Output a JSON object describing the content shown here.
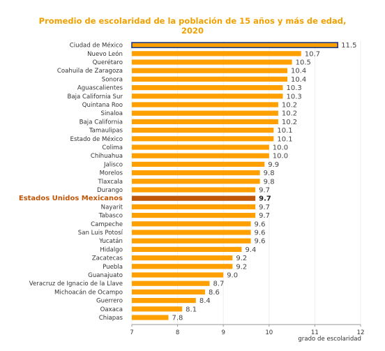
{
  "chart_data": {
    "type": "bar",
    "orientation": "horizontal",
    "title_lines": [
      "Promedio de escolaridad de la población de 15 años y más de edad,",
      "2020"
    ],
    "xlabel": "grado de escolaridad",
    "xlim": [
      7,
      12
    ],
    "xticks": [
      "7",
      "8",
      "9",
      "10",
      "11",
      "12"
    ],
    "highlight_category": "Estados Unidos Mexicanos",
    "bar_color": "#ffa000",
    "highlight_color": "#c0560a",
    "categories": [
      "Ciudad de México",
      "Nuevo León",
      "Querétaro",
      "Coahuila de Zaragoza",
      "Sonora",
      "Aguascalientes",
      "Baja California Sur",
      "Quintana Roo",
      "Sinaloa",
      "Baja California",
      "Tamaulipas",
      "Estado de México",
      "Colima",
      "Chihuahua",
      "Jalisco",
      "Morelos",
      "Tlaxcala",
      "Durango",
      "Estados Unidos Mexicanos",
      "Nayarit",
      "Tabasco",
      "Campeche",
      "San Luis Potosí",
      "Yucatán",
      "Hidalgo",
      "Zacatecas",
      "Puebla",
      "Guanajuato",
      "Veracruz de Ignacio de la Llave",
      "Michoacán de Ocampo",
      "Guerrero",
      "Oaxaca",
      "Chiapas"
    ],
    "value_labels": [
      "11.5",
      "10.7",
      "10.5",
      "10.4",
      "10.4",
      "10.3",
      "10.3",
      "10.2",
      "10.2",
      "10.2",
      "10.1",
      "10.1",
      "10.0",
      "10.0",
      "9.9",
      "9.8",
      "9.8",
      "9.7",
      "9.7",
      "9.7",
      "9.7",
      "9.6",
      "9.6",
      "9.6",
      "9.4",
      "9.2",
      "9.2",
      "9.0",
      "8.7",
      "8.6",
      "8.4",
      "8.1",
      "7.8"
    ],
    "values": [
      11.5,
      10.7,
      10.5,
      10.4,
      10.4,
      10.3,
      10.3,
      10.2,
      10.2,
      10.2,
      10.1,
      10.1,
      10.0,
      10.0,
      9.9,
      9.8,
      9.8,
      9.7,
      9.7,
      9.7,
      9.7,
      9.6,
      9.6,
      9.6,
      9.4,
      9.2,
      9.2,
      9.0,
      8.7,
      8.6,
      8.4,
      8.1,
      7.8
    ]
  }
}
